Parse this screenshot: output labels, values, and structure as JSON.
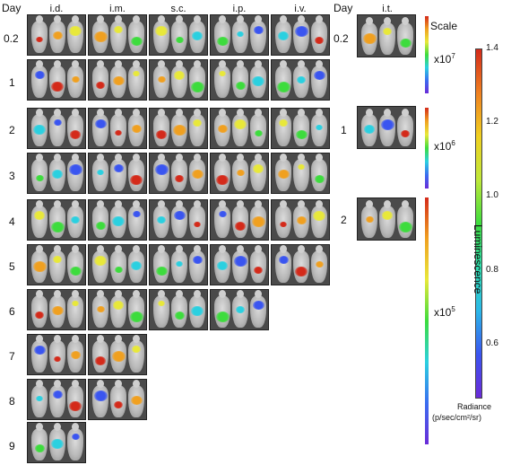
{
  "day_header": "Day",
  "routes": [
    "i.d.",
    "i.m.",
    "s.c.",
    "i.p.",
    "i.v."
  ],
  "days": [
    "0.2",
    "1",
    "2",
    "3",
    "4",
    "5",
    "6",
    "7",
    "8",
    "9"
  ],
  "it_panel": {
    "day_header": "Day",
    "route": "i.t.",
    "days": [
      "0.2",
      "1",
      "2"
    ]
  },
  "scale": {
    "title": "Scale",
    "labels": [
      "x10",
      "x10",
      "x10"
    ],
    "exponents": [
      "7",
      "6",
      "5"
    ]
  },
  "colorbar": {
    "ticks": [
      "1.4",
      "1.2",
      "1.0",
      "0.8",
      "0.6"
    ],
    "axis_label": "Luminescence",
    "unit_label": "Radiance",
    "unit": "(p/sec/cm²/sr)",
    "low_color": "#6a2bd8",
    "high_color": "#d42a1a"
  }
}
